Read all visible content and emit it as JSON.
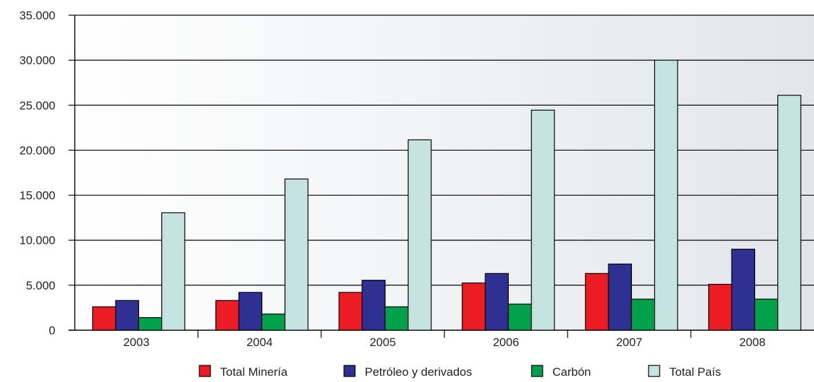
{
  "chart_data": {
    "type": "bar",
    "categories": [
      "2003",
      "2004",
      "2005",
      "2006",
      "2007",
      "2008"
    ],
    "series": [
      {
        "name": "Total Minería",
        "color": "#ec1c24",
        "values": [
          2600,
          3300,
          4200,
          5250,
          6300,
          5100
        ]
      },
      {
        "name": "Petróleo y derivados",
        "color": "#2e3192",
        "values": [
          3300,
          4200,
          5550,
          6300,
          7350,
          9000
        ]
      },
      {
        "name": "Carbón",
        "color": "#00a14b",
        "values": [
          1400,
          1800,
          2600,
          2900,
          3450,
          3450
        ]
      },
      {
        "name": "Total País",
        "color": "#c4e3e1",
        "values": [
          13050,
          16800,
          21150,
          24450,
          30000,
          26100
        ]
      }
    ],
    "yticks": [
      "0",
      "5.000",
      "10.000",
      "15.000",
      "20.000",
      "25.000",
      "30.000",
      "35.000"
    ],
    "ylim": [
      0,
      35000
    ],
    "grid": true,
    "legend_position": "bottom",
    "title": "",
    "xlabel": "",
    "ylabel": ""
  }
}
